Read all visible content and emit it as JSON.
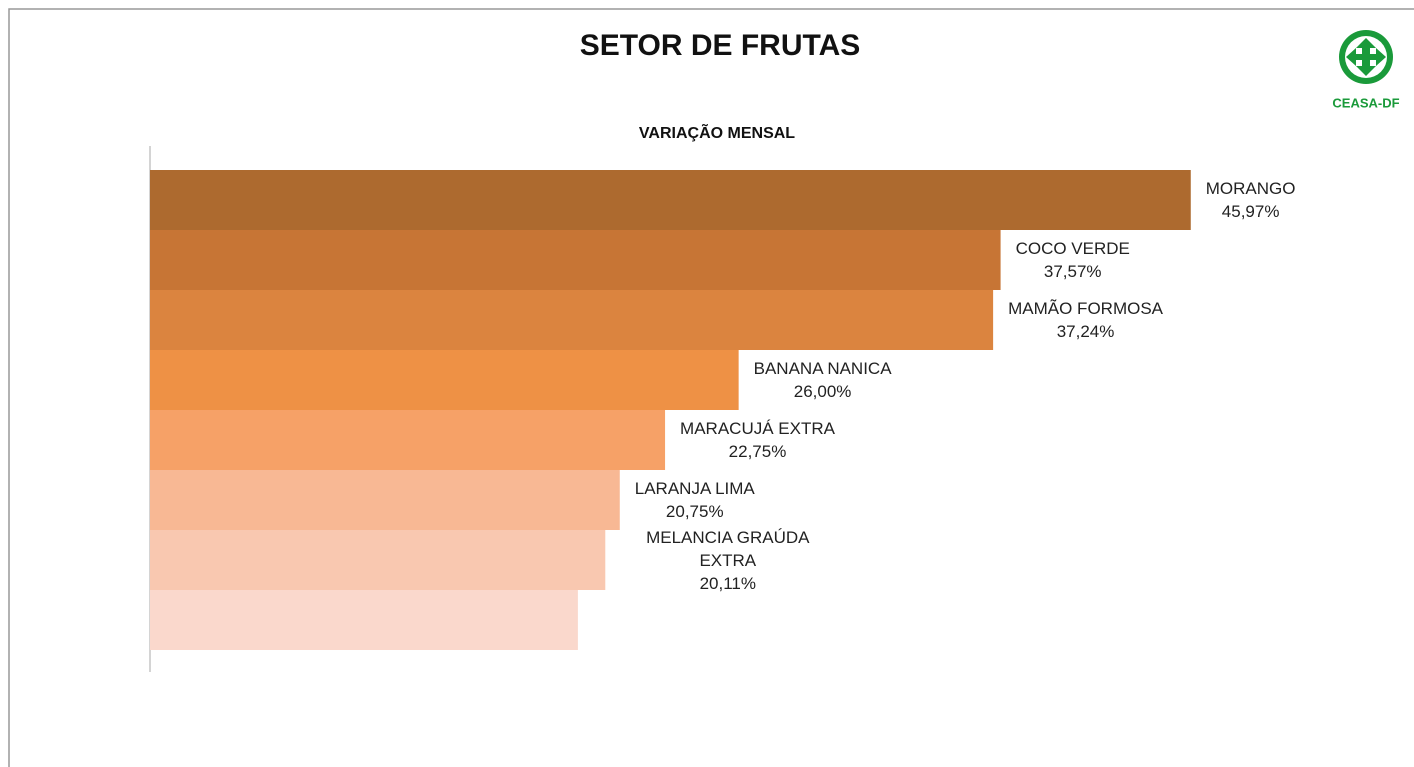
{
  "chart_data": {
    "type": "barh",
    "title": "SETOR DE FRUTAS",
    "subtitle": "VARIAÇÃO MENSAL",
    "logo_text": "CEASA-DF",
    "categories": [
      "MORANGO",
      "COCO VERDE",
      "MAMÃO FORMOSA",
      "BANANA NANICA",
      "MARACUJÁ EXTRA",
      "LARANJA LIMA",
      "MELANCIA GRAÚDA EXTRA",
      null
    ],
    "values": [
      45.97,
      37.57,
      37.24,
      26.0,
      22.75,
      20.75,
      20.11,
      18.9
    ],
    "value_labels": [
      "45,97%",
      "37,57%",
      "37,24%",
      "26,00%",
      "22,75%",
      "20,75%",
      "20,11%",
      null
    ],
    "colors": [
      "#ad6a2f",
      "#c77535",
      "#db843f",
      "#ee9145",
      "#f6a167",
      "#f8b894",
      "#f9c8b0",
      "#fad8cc"
    ],
    "xlim": [
      0,
      50
    ]
  }
}
